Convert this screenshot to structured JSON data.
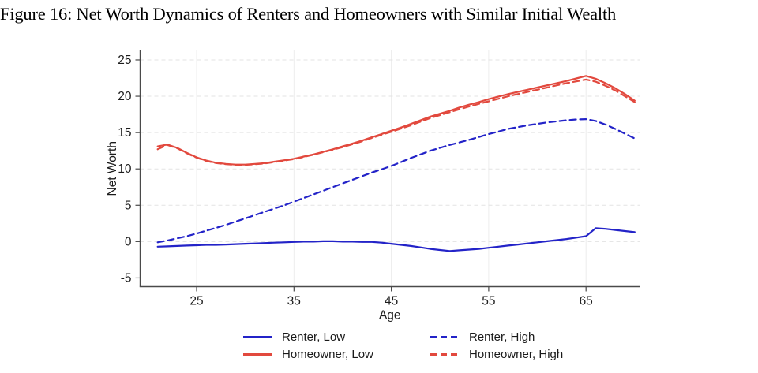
{
  "title": "Figure 16: Net Worth Dynamics of Renters and Homeowners with Similar Initial Wealth",
  "colors": {
    "renter_blue": "#2323c8",
    "homeowner_red": "#e2493e",
    "axis_line": "#4a4a4a",
    "grid_horizontal": "#e3e3e3",
    "grid_vertical": "#ececec",
    "tick_text": "#1c1c1c",
    "background": "#ffffff"
  },
  "chart_data": {
    "type": "line",
    "title": "Figure 16: Net Worth Dynamics of Renters and Homeowners with Similar Initial Wealth",
    "xlabel": "Age",
    "ylabel": "Net Worth",
    "x_ticks": [
      25,
      35,
      45,
      55,
      65
    ],
    "y_ticks": [
      -5,
      0,
      5,
      10,
      15,
      20,
      25
    ],
    "xlim": [
      19.2,
      70.5
    ],
    "ylim": [
      -6.2,
      26.3
    ],
    "grid": true,
    "legend_position": "bottom",
    "ages": [
      21,
      22,
      23,
      24,
      25,
      26,
      27,
      28,
      29,
      30,
      31,
      32,
      33,
      34,
      35,
      36,
      37,
      38,
      39,
      40,
      41,
      42,
      43,
      44,
      45,
      46,
      47,
      48,
      49,
      50,
      51,
      52,
      53,
      54,
      55,
      56,
      57,
      58,
      59,
      60,
      61,
      62,
      63,
      64,
      65,
      66,
      67,
      68,
      69,
      70
    ],
    "series": [
      {
        "name": "Renter, Low",
        "color": "#2323c8",
        "style": "solid",
        "values": [
          -0.7,
          -0.65,
          -0.6,
          -0.55,
          -0.5,
          -0.45,
          -0.45,
          -0.4,
          -0.35,
          -0.3,
          -0.25,
          -0.2,
          -0.15,
          -0.1,
          -0.05,
          0,
          0,
          0.05,
          0.05,
          0,
          0,
          -0.05,
          -0.05,
          -0.15,
          -0.3,
          -0.45,
          -0.6,
          -0.8,
          -1.0,
          -1.15,
          -1.3,
          -1.2,
          -1.1,
          -1.0,
          -0.85,
          -0.7,
          -0.55,
          -0.4,
          -0.25,
          -0.1,
          0.05,
          0.2,
          0.35,
          0.55,
          0.75,
          1.85,
          1.75,
          1.6,
          1.45,
          1.3
        ]
      },
      {
        "name": "Renter, High",
        "color": "#2323c8",
        "style": "dashed",
        "values": [
          -0.1,
          0.15,
          0.45,
          0.75,
          1.1,
          1.5,
          1.9,
          2.3,
          2.75,
          3.2,
          3.65,
          4.1,
          4.55,
          5.0,
          5.5,
          6.0,
          6.5,
          7.0,
          7.5,
          8.0,
          8.5,
          9.0,
          9.5,
          9.95,
          10.4,
          10.95,
          11.5,
          12.0,
          12.5,
          12.9,
          13.3,
          13.65,
          14.0,
          14.4,
          14.8,
          15.15,
          15.5,
          15.75,
          16.0,
          16.2,
          16.4,
          16.55,
          16.7,
          16.8,
          16.85,
          16.6,
          16.1,
          15.5,
          14.85,
          14.2
        ]
      },
      {
        "name": "Homeowner, Low",
        "color": "#e2493e",
        "style": "solid",
        "values": [
          13.1,
          13.35,
          12.9,
          12.2,
          11.6,
          11.15,
          10.85,
          10.7,
          10.6,
          10.6,
          10.7,
          10.8,
          11.0,
          11.2,
          11.4,
          11.7,
          12.0,
          12.35,
          12.7,
          13.1,
          13.5,
          13.9,
          14.35,
          14.8,
          15.25,
          15.7,
          16.2,
          16.7,
          17.2,
          17.6,
          18.0,
          18.45,
          18.85,
          19.2,
          19.6,
          19.95,
          20.3,
          20.6,
          20.9,
          21.2,
          21.5,
          21.8,
          22.1,
          22.45,
          22.8,
          22.4,
          21.8,
          21.1,
          20.3,
          19.4
        ]
      },
      {
        "name": "Homeowner, High",
        "color": "#e2493e",
        "style": "dashed",
        "values": [
          12.7,
          13.3,
          12.85,
          12.15,
          11.55,
          11.1,
          10.8,
          10.65,
          10.55,
          10.55,
          10.65,
          10.75,
          10.95,
          11.15,
          11.35,
          11.65,
          11.95,
          12.3,
          12.65,
          13.0,
          13.4,
          13.8,
          14.25,
          14.7,
          15.1,
          15.55,
          16.0,
          16.5,
          17.0,
          17.4,
          17.8,
          18.2,
          18.6,
          18.95,
          19.3,
          19.65,
          20.0,
          20.3,
          20.6,
          20.9,
          21.2,
          21.5,
          21.8,
          22.05,
          22.3,
          22.0,
          21.45,
          20.8,
          20.0,
          19.2
        ]
      }
    ]
  },
  "legend": {
    "items": [
      {
        "label": "Renter, Low"
      },
      {
        "label": "Renter, High"
      },
      {
        "label": "Homeowner, Low"
      },
      {
        "label": "Homeowner, High"
      }
    ]
  }
}
